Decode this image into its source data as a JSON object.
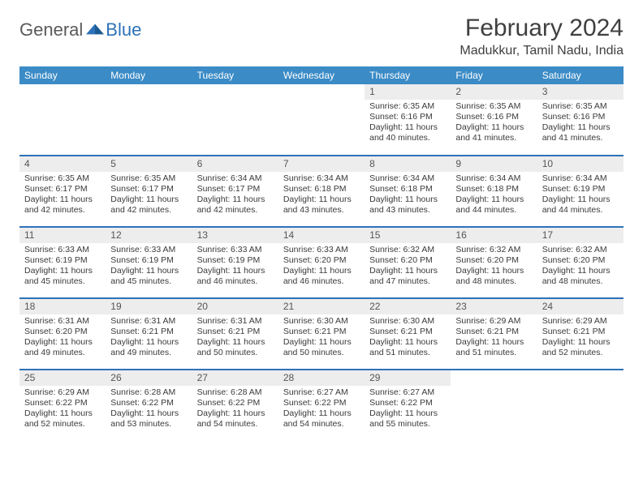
{
  "logo": {
    "text_general": "General",
    "text_blue": "Blue"
  },
  "title": "February 2024",
  "location": "Madukkur, Tamil Nadu, India",
  "colors": {
    "header_bg": "#3b8bc6",
    "header_text": "#ffffff",
    "daynum_bg": "#ededed",
    "row_divider": "#2d72b8",
    "body_text": "#3a3a3a",
    "title_text": "#404040",
    "logo_gray": "#5a5a5a",
    "logo_blue": "#2d72b8",
    "page_bg": "#ffffff"
  },
  "typography": {
    "title_fontsize": 30,
    "location_fontsize": 16,
    "dayheader_fontsize": 12,
    "cell_fontsize": 10.5,
    "logo_fontsize": 22
  },
  "day_headers": [
    "Sunday",
    "Monday",
    "Tuesday",
    "Wednesday",
    "Thursday",
    "Friday",
    "Saturday"
  ],
  "weeks": [
    [
      {
        "n": "",
        "sunrise": "",
        "sunset": "",
        "daylight": ""
      },
      {
        "n": "",
        "sunrise": "",
        "sunset": "",
        "daylight": ""
      },
      {
        "n": "",
        "sunrise": "",
        "sunset": "",
        "daylight": ""
      },
      {
        "n": "",
        "sunrise": "",
        "sunset": "",
        "daylight": ""
      },
      {
        "n": "1",
        "sunrise": "Sunrise: 6:35 AM",
        "sunset": "Sunset: 6:16 PM",
        "daylight": "Daylight: 11 hours and 40 minutes."
      },
      {
        "n": "2",
        "sunrise": "Sunrise: 6:35 AM",
        "sunset": "Sunset: 6:16 PM",
        "daylight": "Daylight: 11 hours and 41 minutes."
      },
      {
        "n": "3",
        "sunrise": "Sunrise: 6:35 AM",
        "sunset": "Sunset: 6:16 PM",
        "daylight": "Daylight: 11 hours and 41 minutes."
      }
    ],
    [
      {
        "n": "4",
        "sunrise": "Sunrise: 6:35 AM",
        "sunset": "Sunset: 6:17 PM",
        "daylight": "Daylight: 11 hours and 42 minutes."
      },
      {
        "n": "5",
        "sunrise": "Sunrise: 6:35 AM",
        "sunset": "Sunset: 6:17 PM",
        "daylight": "Daylight: 11 hours and 42 minutes."
      },
      {
        "n": "6",
        "sunrise": "Sunrise: 6:34 AM",
        "sunset": "Sunset: 6:17 PM",
        "daylight": "Daylight: 11 hours and 42 minutes."
      },
      {
        "n": "7",
        "sunrise": "Sunrise: 6:34 AM",
        "sunset": "Sunset: 6:18 PM",
        "daylight": "Daylight: 11 hours and 43 minutes."
      },
      {
        "n": "8",
        "sunrise": "Sunrise: 6:34 AM",
        "sunset": "Sunset: 6:18 PM",
        "daylight": "Daylight: 11 hours and 43 minutes."
      },
      {
        "n": "9",
        "sunrise": "Sunrise: 6:34 AM",
        "sunset": "Sunset: 6:18 PM",
        "daylight": "Daylight: 11 hours and 44 minutes."
      },
      {
        "n": "10",
        "sunrise": "Sunrise: 6:34 AM",
        "sunset": "Sunset: 6:19 PM",
        "daylight": "Daylight: 11 hours and 44 minutes."
      }
    ],
    [
      {
        "n": "11",
        "sunrise": "Sunrise: 6:33 AM",
        "sunset": "Sunset: 6:19 PM",
        "daylight": "Daylight: 11 hours and 45 minutes."
      },
      {
        "n": "12",
        "sunrise": "Sunrise: 6:33 AM",
        "sunset": "Sunset: 6:19 PM",
        "daylight": "Daylight: 11 hours and 45 minutes."
      },
      {
        "n": "13",
        "sunrise": "Sunrise: 6:33 AM",
        "sunset": "Sunset: 6:19 PM",
        "daylight": "Daylight: 11 hours and 46 minutes."
      },
      {
        "n": "14",
        "sunrise": "Sunrise: 6:33 AM",
        "sunset": "Sunset: 6:20 PM",
        "daylight": "Daylight: 11 hours and 46 minutes."
      },
      {
        "n": "15",
        "sunrise": "Sunrise: 6:32 AM",
        "sunset": "Sunset: 6:20 PM",
        "daylight": "Daylight: 11 hours and 47 minutes."
      },
      {
        "n": "16",
        "sunrise": "Sunrise: 6:32 AM",
        "sunset": "Sunset: 6:20 PM",
        "daylight": "Daylight: 11 hours and 48 minutes."
      },
      {
        "n": "17",
        "sunrise": "Sunrise: 6:32 AM",
        "sunset": "Sunset: 6:20 PM",
        "daylight": "Daylight: 11 hours and 48 minutes."
      }
    ],
    [
      {
        "n": "18",
        "sunrise": "Sunrise: 6:31 AM",
        "sunset": "Sunset: 6:20 PM",
        "daylight": "Daylight: 11 hours and 49 minutes."
      },
      {
        "n": "19",
        "sunrise": "Sunrise: 6:31 AM",
        "sunset": "Sunset: 6:21 PM",
        "daylight": "Daylight: 11 hours and 49 minutes."
      },
      {
        "n": "20",
        "sunrise": "Sunrise: 6:31 AM",
        "sunset": "Sunset: 6:21 PM",
        "daylight": "Daylight: 11 hours and 50 minutes."
      },
      {
        "n": "21",
        "sunrise": "Sunrise: 6:30 AM",
        "sunset": "Sunset: 6:21 PM",
        "daylight": "Daylight: 11 hours and 50 minutes."
      },
      {
        "n": "22",
        "sunrise": "Sunrise: 6:30 AM",
        "sunset": "Sunset: 6:21 PM",
        "daylight": "Daylight: 11 hours and 51 minutes."
      },
      {
        "n": "23",
        "sunrise": "Sunrise: 6:29 AM",
        "sunset": "Sunset: 6:21 PM",
        "daylight": "Daylight: 11 hours and 51 minutes."
      },
      {
        "n": "24",
        "sunrise": "Sunrise: 6:29 AM",
        "sunset": "Sunset: 6:21 PM",
        "daylight": "Daylight: 11 hours and 52 minutes."
      }
    ],
    [
      {
        "n": "25",
        "sunrise": "Sunrise: 6:29 AM",
        "sunset": "Sunset: 6:22 PM",
        "daylight": "Daylight: 11 hours and 52 minutes."
      },
      {
        "n": "26",
        "sunrise": "Sunrise: 6:28 AM",
        "sunset": "Sunset: 6:22 PM",
        "daylight": "Daylight: 11 hours and 53 minutes."
      },
      {
        "n": "27",
        "sunrise": "Sunrise: 6:28 AM",
        "sunset": "Sunset: 6:22 PM",
        "daylight": "Daylight: 11 hours and 54 minutes."
      },
      {
        "n": "28",
        "sunrise": "Sunrise: 6:27 AM",
        "sunset": "Sunset: 6:22 PM",
        "daylight": "Daylight: 11 hours and 54 minutes."
      },
      {
        "n": "29",
        "sunrise": "Sunrise: 6:27 AM",
        "sunset": "Sunset: 6:22 PM",
        "daylight": "Daylight: 11 hours and 55 minutes."
      },
      {
        "n": "",
        "sunrise": "",
        "sunset": "",
        "daylight": ""
      },
      {
        "n": "",
        "sunrise": "",
        "sunset": "",
        "daylight": ""
      }
    ]
  ]
}
